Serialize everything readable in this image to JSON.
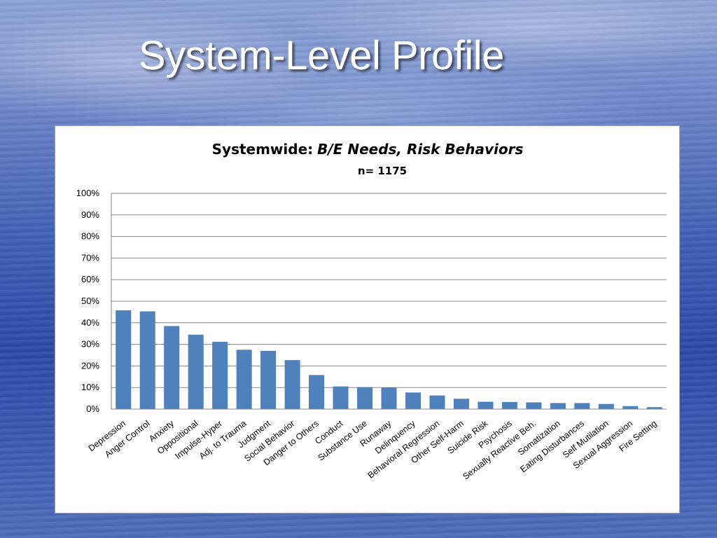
{
  "slide": {
    "title": "System-Level Profile"
  },
  "chart_data": {
    "type": "bar",
    "title": "Systemwide:",
    "title_italic": "B/E Needs, Risk Behaviors",
    "subtitle": "n= 1175",
    "xlabel": "",
    "ylabel": "",
    "ylim": [
      0,
      100
    ],
    "yticks": [
      "0%",
      "10%",
      "20%",
      "30%",
      "40%",
      "50%",
      "60%",
      "70%",
      "80%",
      "90%",
      "100%"
    ],
    "grid": true,
    "legend": "none",
    "bar_color": "#4f81bd",
    "categories": [
      "Depression",
      "Anger Control",
      "Anxiety",
      "Oppositional",
      "Impulse-Hyper",
      "Adj. to Trauma",
      "Judgment",
      "Social Behavior",
      "Danger to Others",
      "Conduct",
      "Substance Use",
      "Runaway",
      "Delinquency",
      "Behavioral Regression",
      "Other Self-Harm",
      "Suicide Risk",
      "Psychosis",
      "Sexually Reactive Beh.",
      "Somatization",
      "Eating Disturbances",
      "Self Mutilation",
      "Sexual Aggression",
      "Fire Setting"
    ],
    "values": [
      45.8,
      45.3,
      38.5,
      34.5,
      31.2,
      27.5,
      27.0,
      22.7,
      15.8,
      10.5,
      10.2,
      10.0,
      7.7,
      6.3,
      4.8,
      3.4,
      3.3,
      3.1,
      2.8,
      2.8,
      2.4,
      1.4,
      0.9
    ]
  }
}
